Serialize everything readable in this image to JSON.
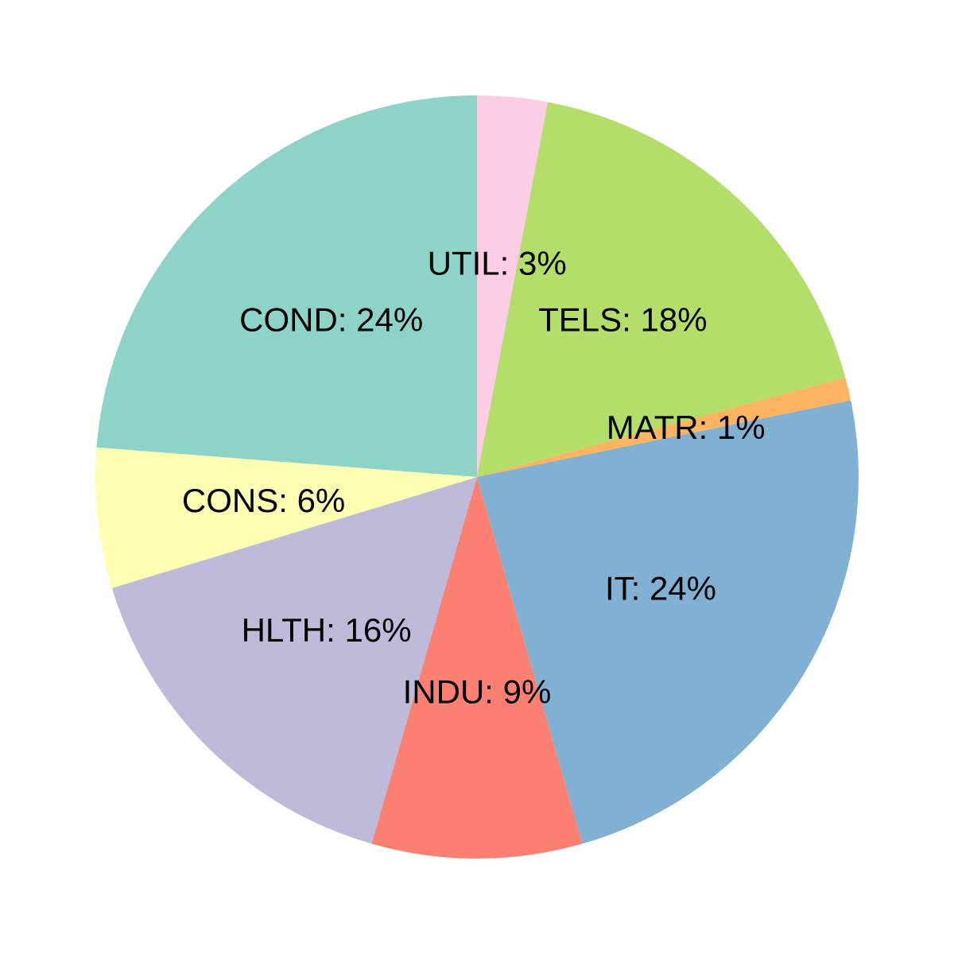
{
  "chart_data": {
    "type": "pie",
    "title": "",
    "start": "top",
    "direction": "clockwise",
    "slices": [
      {
        "category": "UTIL",
        "label": "UTIL: 3%",
        "value": 3,
        "color": "#FCCDE5"
      },
      {
        "category": "TELS",
        "label": "TELS: 18%",
        "value": 18,
        "color": "#B3DE69"
      },
      {
        "category": "MATR",
        "label": "MATR: 1%",
        "value": 1,
        "color": "#FDB462"
      },
      {
        "category": "IT",
        "label": "IT: 24%",
        "value": 24,
        "color": "#80B1D3"
      },
      {
        "category": "INDU",
        "label": "INDU: 9%",
        "value": 9,
        "color": "#FB8072"
      },
      {
        "category": "HLTH",
        "label": "HLTH: 16%",
        "value": 16,
        "color": "#BEBADA"
      },
      {
        "category": "CONS",
        "label": "CONS: 6%",
        "value": 6,
        "color": "#FFFFB3"
      },
      {
        "category": "COND",
        "label": "COND: 24%",
        "value": 24,
        "color": "#8DD3C7"
      }
    ]
  }
}
